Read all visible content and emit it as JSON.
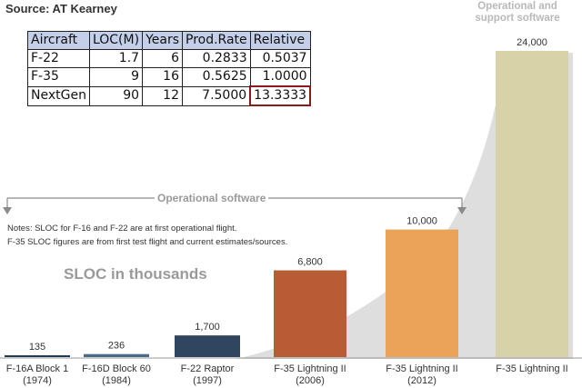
{
  "source": "Source: AT Kearney",
  "support_label": "Operational and support software",
  "operational_label": "Operational software",
  "notes": [
    "Notes: SLOC for F-16 and F-22 are at first operational flight.",
    "F-35 SLOC figures are from first test flight and current estimates/sources."
  ],
  "unit_title": "SLOC in thousands",
  "table": {
    "headers": [
      "Aircraft",
      "LOC(M)",
      "Years",
      "Prod.Rate",
      "Relative"
    ],
    "rows": [
      [
        "F-22",
        "1.7",
        "6",
        "0.2833",
        "0.5037"
      ],
      [
        "F-35",
        "9",
        "16",
        "0.5625",
        "1.0000"
      ],
      [
        "NextGen",
        "90",
        "12",
        "7.5000",
        "13.3333"
      ]
    ]
  },
  "chart_data": {
    "type": "bar",
    "categories": [
      "F-16A Block 1 (1974)",
      "F-16D Block 60 (1984)",
      "F-22 Raptor (1997)",
      "F-35 Lightning II (2006)",
      "F-35 Lightning II (2012)",
      "F-35 Lightning II"
    ],
    "category_lines": [
      [
        "F-16A Block 1",
        "(1974)"
      ],
      [
        "F-16D Block 60",
        "(1984)"
      ],
      [
        "F-22 Raptor",
        "(1997)"
      ],
      [
        "F-35 Lightning II",
        "(2006)"
      ],
      [
        "F-35 Lightning II",
        "(2012)"
      ],
      [
        "F-35 Lightning II",
        ""
      ]
    ],
    "values": [
      135,
      236,
      1700,
      6800,
      10000,
      24000
    ],
    "data_labels": [
      "135",
      "236",
      "1,700",
      "6,800",
      "10,000",
      "24,000"
    ],
    "colors": [
      "#1f3a5c",
      "#4a6a8a",
      "#2f4560",
      "#b85c35",
      "#eba35a",
      "#d8d2a8"
    ],
    "ylim": [
      0,
      25000
    ],
    "grid": false,
    "legend": "none"
  }
}
